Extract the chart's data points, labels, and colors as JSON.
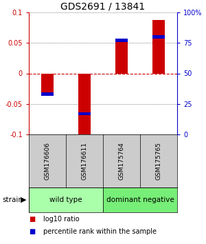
{
  "title": "GDS2691 / 13841",
  "samples": [
    "GSM176606",
    "GSM176611",
    "GSM175764",
    "GSM175765"
  ],
  "log10_ratios": [
    -0.035,
    -0.1,
    0.052,
    0.088
  ],
  "percentile_ranks": [
    33,
    17,
    77,
    80
  ],
  "ylim_left": [
    -0.1,
    0.1
  ],
  "ylim_right": [
    0,
    100
  ],
  "yticks_left": [
    -0.1,
    -0.05,
    0,
    0.05,
    0.1
  ],
  "yticks_right": [
    0,
    25,
    50,
    75,
    100
  ],
  "bar_color": "#cc0000",
  "percentile_color": "#0000cc",
  "zero_line_color": "#cc0000",
  "grid_color": "#000000",
  "groups": [
    {
      "label": "wild type",
      "samples": [
        0,
        1
      ],
      "color": "#aaffaa"
    },
    {
      "label": "dominant negative",
      "samples": [
        2,
        3
      ],
      "color": "#77ee77"
    }
  ],
  "strain_label": "strain",
  "legend_items": [
    {
      "color": "#cc0000",
      "label": "log10 ratio"
    },
    {
      "color": "#0000cc",
      "label": "percentile rank within the sample"
    }
  ],
  "title_fontsize": 10,
  "tick_fontsize": 7,
  "sample_label_fontsize": 6.5,
  "group_label_fontsize": 7.5,
  "legend_fontsize": 7,
  "bar_width": 0.35
}
